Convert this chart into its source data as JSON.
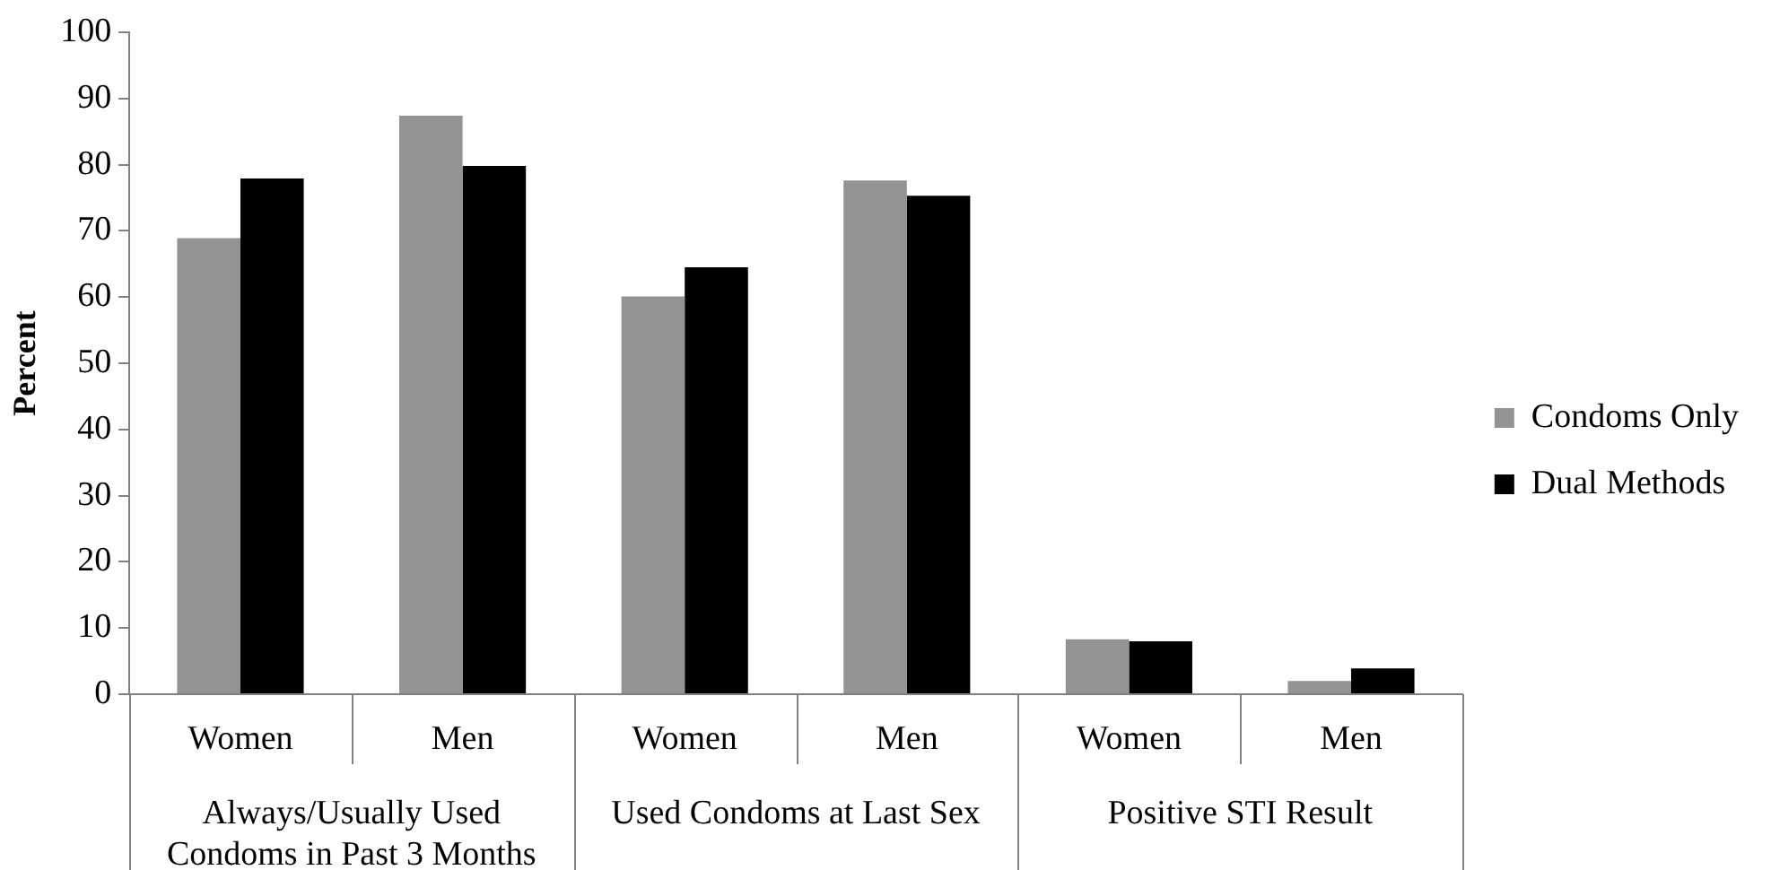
{
  "chart_data": {
    "type": "bar",
    "ylabel": "Percent",
    "categories": [
      "Women",
      "Men",
      "Women",
      "Men",
      "Women",
      "Men"
    ],
    "series": [
      {
        "name": "Condoms Only",
        "color": "#939393",
        "values": [
          68.9,
          87.4,
          60.1,
          77.6,
          8.3,
          2.0
        ]
      },
      {
        "name": "Dual Methods",
        "color": "#000000",
        "values": [
          77.9,
          79.8,
          64.5,
          75.3,
          8.0,
          3.9
        ]
      }
    ],
    "ylim": [
      0,
      100
    ],
    "yticks": [
      0,
      10,
      20,
      30,
      40,
      50,
      60,
      70,
      80,
      90,
      100
    ],
    "grid": false,
    "legend": "right",
    "annotations": [
      "Always/Usually Used Condoms in Past 3 Months",
      "Used Condoms at Last Sex",
      "Positive STI Result"
    ]
  }
}
